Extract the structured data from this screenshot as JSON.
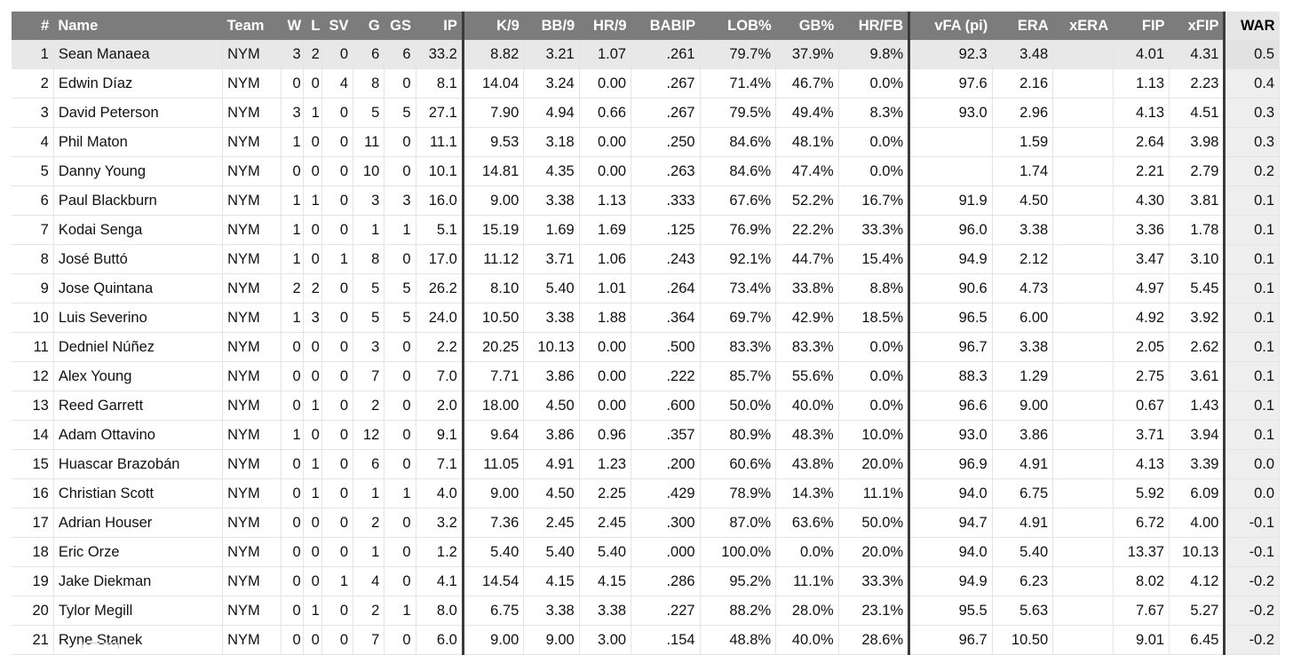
{
  "columns": [
    {
      "key": "rank",
      "label": "#"
    },
    {
      "key": "name",
      "label": "Name"
    },
    {
      "key": "team",
      "label": "Team"
    },
    {
      "key": "w",
      "label": "W"
    },
    {
      "key": "l",
      "label": "L"
    },
    {
      "key": "sv",
      "label": "SV"
    },
    {
      "key": "g",
      "label": "G"
    },
    {
      "key": "gs",
      "label": "GS"
    },
    {
      "key": "ip",
      "label": "IP"
    },
    {
      "key": "k9",
      "label": "K/9"
    },
    {
      "key": "bb9",
      "label": "BB/9"
    },
    {
      "key": "hr9",
      "label": "HR/9"
    },
    {
      "key": "babip",
      "label": "BABIP"
    },
    {
      "key": "lob",
      "label": "LOB%"
    },
    {
      "key": "gb",
      "label": "GB%"
    },
    {
      "key": "hrfb",
      "label": "HR/FB"
    },
    {
      "key": "vfa",
      "label": "vFA (pi)"
    },
    {
      "key": "era",
      "label": "ERA"
    },
    {
      "key": "xera",
      "label": "xERA"
    },
    {
      "key": "fip",
      "label": "FIP"
    },
    {
      "key": "xfip",
      "label": "xFIP"
    },
    {
      "key": "war",
      "label": "WAR"
    }
  ],
  "rows": [
    {
      "rank": "1",
      "name": "Sean Manaea",
      "team": "NYM",
      "w": "3",
      "l": "2",
      "sv": "0",
      "g": "6",
      "gs": "6",
      "ip": "33.2",
      "k9": "8.82",
      "bb9": "3.21",
      "hr9": "1.07",
      "babip": ".261",
      "lob": "79.7%",
      "gb": "37.9%",
      "hrfb": "9.8%",
      "vfa": "92.3",
      "era": "3.48",
      "xera": "",
      "fip": "4.01",
      "xfip": "4.31",
      "war": "0.5"
    },
    {
      "rank": "2",
      "name": "Edwin Díaz",
      "team": "NYM",
      "w": "0",
      "l": "0",
      "sv": "4",
      "g": "8",
      "gs": "0",
      "ip": "8.1",
      "k9": "14.04",
      "bb9": "3.24",
      "hr9": "0.00",
      "babip": ".267",
      "lob": "71.4%",
      "gb": "46.7%",
      "hrfb": "0.0%",
      "vfa": "97.6",
      "era": "2.16",
      "xera": "",
      "fip": "1.13",
      "xfip": "2.23",
      "war": "0.4"
    },
    {
      "rank": "3",
      "name": "David Peterson",
      "team": "NYM",
      "w": "3",
      "l": "1",
      "sv": "0",
      "g": "5",
      "gs": "5",
      "ip": "27.1",
      "k9": "7.90",
      "bb9": "4.94",
      "hr9": "0.66",
      "babip": ".267",
      "lob": "79.5%",
      "gb": "49.4%",
      "hrfb": "8.3%",
      "vfa": "93.0",
      "era": "2.96",
      "xera": "",
      "fip": "4.13",
      "xfip": "4.51",
      "war": "0.3"
    },
    {
      "rank": "4",
      "name": "Phil Maton",
      "team": "NYM",
      "w": "1",
      "l": "0",
      "sv": "0",
      "g": "11",
      "gs": "0",
      "ip": "11.1",
      "k9": "9.53",
      "bb9": "3.18",
      "hr9": "0.00",
      "babip": ".250",
      "lob": "84.6%",
      "gb": "48.1%",
      "hrfb": "0.0%",
      "vfa": "",
      "era": "1.59",
      "xera": "",
      "fip": "2.64",
      "xfip": "3.98",
      "war": "0.3"
    },
    {
      "rank": "5",
      "name": "Danny Young",
      "team": "NYM",
      "w": "0",
      "l": "0",
      "sv": "0",
      "g": "10",
      "gs": "0",
      "ip": "10.1",
      "k9": "14.81",
      "bb9": "4.35",
      "hr9": "0.00",
      "babip": ".263",
      "lob": "84.6%",
      "gb": "47.4%",
      "hrfb": "0.0%",
      "vfa": "",
      "era": "1.74",
      "xera": "",
      "fip": "2.21",
      "xfip": "2.79",
      "war": "0.2"
    },
    {
      "rank": "6",
      "name": "Paul Blackburn",
      "team": "NYM",
      "w": "1",
      "l": "1",
      "sv": "0",
      "g": "3",
      "gs": "3",
      "ip": "16.0",
      "k9": "9.00",
      "bb9": "3.38",
      "hr9": "1.13",
      "babip": ".333",
      "lob": "67.6%",
      "gb": "52.2%",
      "hrfb": "16.7%",
      "vfa": "91.9",
      "era": "4.50",
      "xera": "",
      "fip": "4.30",
      "xfip": "3.81",
      "war": "0.1"
    },
    {
      "rank": "7",
      "name": "Kodai Senga",
      "team": "NYM",
      "w": "1",
      "l": "0",
      "sv": "0",
      "g": "1",
      "gs": "1",
      "ip": "5.1",
      "k9": "15.19",
      "bb9": "1.69",
      "hr9": "1.69",
      "babip": ".125",
      "lob": "76.9%",
      "gb": "22.2%",
      "hrfb": "33.3%",
      "vfa": "96.0",
      "era": "3.38",
      "xera": "",
      "fip": "3.36",
      "xfip": "1.78",
      "war": "0.1"
    },
    {
      "rank": "8",
      "name": "José Buttó",
      "team": "NYM",
      "w": "1",
      "l": "0",
      "sv": "1",
      "g": "8",
      "gs": "0",
      "ip": "17.0",
      "k9": "11.12",
      "bb9": "3.71",
      "hr9": "1.06",
      "babip": ".243",
      "lob": "92.1%",
      "gb": "44.7%",
      "hrfb": "15.4%",
      "vfa": "94.9",
      "era": "2.12",
      "xera": "",
      "fip": "3.47",
      "xfip": "3.10",
      "war": "0.1"
    },
    {
      "rank": "9",
      "name": "Jose Quintana",
      "team": "NYM",
      "w": "2",
      "l": "2",
      "sv": "0",
      "g": "5",
      "gs": "5",
      "ip": "26.2",
      "k9": "8.10",
      "bb9": "5.40",
      "hr9": "1.01",
      "babip": ".264",
      "lob": "73.4%",
      "gb": "33.8%",
      "hrfb": "8.8%",
      "vfa": "90.6",
      "era": "4.73",
      "xera": "",
      "fip": "4.97",
      "xfip": "5.45",
      "war": "0.1"
    },
    {
      "rank": "10",
      "name": "Luis Severino",
      "team": "NYM",
      "w": "1",
      "l": "3",
      "sv": "0",
      "g": "5",
      "gs": "5",
      "ip": "24.0",
      "k9": "10.50",
      "bb9": "3.38",
      "hr9": "1.88",
      "babip": ".364",
      "lob": "69.7%",
      "gb": "42.9%",
      "hrfb": "18.5%",
      "vfa": "96.5",
      "era": "6.00",
      "xera": "",
      "fip": "4.92",
      "xfip": "3.92",
      "war": "0.1"
    },
    {
      "rank": "11",
      "name": "Dedniel Núñez",
      "team": "NYM",
      "w": "0",
      "l": "0",
      "sv": "0",
      "g": "3",
      "gs": "0",
      "ip": "2.2",
      "k9": "20.25",
      "bb9": "10.13",
      "hr9": "0.00",
      "babip": ".500",
      "lob": "83.3%",
      "gb": "83.3%",
      "hrfb": "0.0%",
      "vfa": "96.7",
      "era": "3.38",
      "xera": "",
      "fip": "2.05",
      "xfip": "2.62",
      "war": "0.1"
    },
    {
      "rank": "12",
      "name": "Alex Young",
      "team": "NYM",
      "w": "0",
      "l": "0",
      "sv": "0",
      "g": "7",
      "gs": "0",
      "ip": "7.0",
      "k9": "7.71",
      "bb9": "3.86",
      "hr9": "0.00",
      "babip": ".222",
      "lob": "85.7%",
      "gb": "55.6%",
      "hrfb": "0.0%",
      "vfa": "88.3",
      "era": "1.29",
      "xera": "",
      "fip": "2.75",
      "xfip": "3.61",
      "war": "0.1"
    },
    {
      "rank": "13",
      "name": "Reed Garrett",
      "team": "NYM",
      "w": "0",
      "l": "1",
      "sv": "0",
      "g": "2",
      "gs": "0",
      "ip": "2.0",
      "k9": "18.00",
      "bb9": "4.50",
      "hr9": "0.00",
      "babip": ".600",
      "lob": "50.0%",
      "gb": "40.0%",
      "hrfb": "0.0%",
      "vfa": "96.6",
      "era": "9.00",
      "xera": "",
      "fip": "0.67",
      "xfip": "1.43",
      "war": "0.1"
    },
    {
      "rank": "14",
      "name": "Adam Ottavino",
      "team": "NYM",
      "w": "1",
      "l": "0",
      "sv": "0",
      "g": "12",
      "gs": "0",
      "ip": "9.1",
      "k9": "9.64",
      "bb9": "3.86",
      "hr9": "0.96",
      "babip": ".357",
      "lob": "80.9%",
      "gb": "48.3%",
      "hrfb": "10.0%",
      "vfa": "93.0",
      "era": "3.86",
      "xera": "",
      "fip": "3.71",
      "xfip": "3.94",
      "war": "0.1"
    },
    {
      "rank": "15",
      "name": "Huascar Brazobán",
      "team": "NYM",
      "w": "0",
      "l": "1",
      "sv": "0",
      "g": "6",
      "gs": "0",
      "ip": "7.1",
      "k9": "11.05",
      "bb9": "4.91",
      "hr9": "1.23",
      "babip": ".200",
      "lob": "60.6%",
      "gb": "43.8%",
      "hrfb": "20.0%",
      "vfa": "96.9",
      "era": "4.91",
      "xera": "",
      "fip": "4.13",
      "xfip": "3.39",
      "war": "0.0"
    },
    {
      "rank": "16",
      "name": "Christian Scott",
      "team": "NYM",
      "w": "0",
      "l": "1",
      "sv": "0",
      "g": "1",
      "gs": "1",
      "ip": "4.0",
      "k9": "9.00",
      "bb9": "4.50",
      "hr9": "2.25",
      "babip": ".429",
      "lob": "78.9%",
      "gb": "14.3%",
      "hrfb": "11.1%",
      "vfa": "94.0",
      "era": "6.75",
      "xera": "",
      "fip": "5.92",
      "xfip": "6.09",
      "war": "0.0"
    },
    {
      "rank": "17",
      "name": "Adrian Houser",
      "team": "NYM",
      "w": "0",
      "l": "0",
      "sv": "0",
      "g": "2",
      "gs": "0",
      "ip": "3.2",
      "k9": "7.36",
      "bb9": "2.45",
      "hr9": "2.45",
      "babip": ".300",
      "lob": "87.0%",
      "gb": "63.6%",
      "hrfb": "50.0%",
      "vfa": "94.7",
      "era": "4.91",
      "xera": "",
      "fip": "6.72",
      "xfip": "4.00",
      "war": "-0.1"
    },
    {
      "rank": "18",
      "name": "Eric Orze",
      "team": "NYM",
      "w": "0",
      "l": "0",
      "sv": "0",
      "g": "1",
      "gs": "0",
      "ip": "1.2",
      "k9": "5.40",
      "bb9": "5.40",
      "hr9": "5.40",
      "babip": ".000",
      "lob": "100.0%",
      "gb": "0.0%",
      "hrfb": "20.0%",
      "vfa": "94.0",
      "era": "5.40",
      "xera": "",
      "fip": "13.37",
      "xfip": "10.13",
      "war": "-0.1"
    },
    {
      "rank": "19",
      "name": "Jake Diekman",
      "team": "NYM",
      "w": "0",
      "l": "0",
      "sv": "1",
      "g": "4",
      "gs": "0",
      "ip": "4.1",
      "k9": "14.54",
      "bb9": "4.15",
      "hr9": "4.15",
      "babip": ".286",
      "lob": "95.2%",
      "gb": "11.1%",
      "hrfb": "33.3%",
      "vfa": "94.9",
      "era": "6.23",
      "xera": "",
      "fip": "8.02",
      "xfip": "4.12",
      "war": "-0.2"
    },
    {
      "rank": "20",
      "name": "Tylor Megill",
      "team": "NYM",
      "w": "0",
      "l": "1",
      "sv": "0",
      "g": "2",
      "gs": "1",
      "ip": "8.0",
      "k9": "6.75",
      "bb9": "3.38",
      "hr9": "3.38",
      "babip": ".227",
      "lob": "88.2%",
      "gb": "28.0%",
      "hrfb": "23.1%",
      "vfa": "95.5",
      "era": "5.63",
      "xera": "",
      "fip": "7.67",
      "xfip": "5.27",
      "war": "-0.2"
    },
    {
      "rank": "21",
      "name": "Ryne Stanek",
      "team": "NYM",
      "w": "0",
      "l": "0",
      "sv": "0",
      "g": "7",
      "gs": "0",
      "ip": "6.0",
      "k9": "9.00",
      "bb9": "9.00",
      "hr9": "3.00",
      "babip": ".154",
      "lob": "48.8%",
      "gb": "40.0%",
      "hrfb": "28.6%",
      "vfa": "96.7",
      "era": "10.50",
      "xera": "",
      "fip": "9.01",
      "xfip": "6.45",
      "war": "-0.2"
    }
  ],
  "colors": {
    "header_bg": "#7c7c7c",
    "header_text": "#ffffff",
    "war_header_bg": "#e6e6e6",
    "highlight_row": "#e8e8e8",
    "separator": "#3a3a3a"
  }
}
